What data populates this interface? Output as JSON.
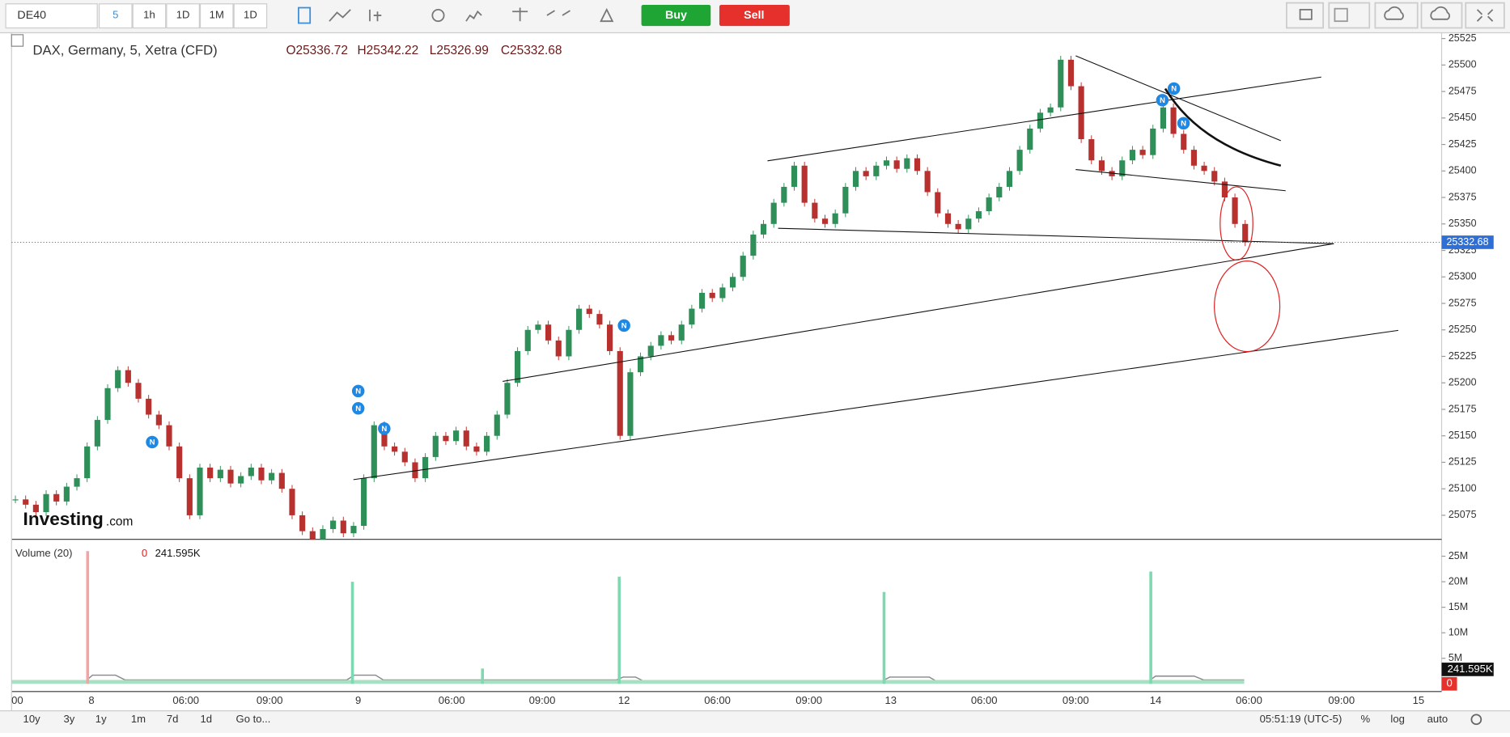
{
  "toolbar": {
    "symbol": "DE40",
    "intervals": [
      "5",
      "1h",
      "1D",
      "1M",
      "1D"
    ],
    "buy": "Buy",
    "sell": "Sell"
  },
  "price_chart": {
    "title": "DAX, Germany, 5, Xetra (CFD)",
    "ohlc": [
      "O25336.72",
      "H25342.22",
      "L25326.99",
      "C25332.68"
    ],
    "ylim": [
      25075,
      25525
    ],
    "yticks": [
      25075,
      25100,
      25125,
      25150,
      25175,
      25200,
      25225,
      25250,
      25275,
      25300,
      25325,
      25350,
      25375,
      25400,
      25425,
      25450,
      25475,
      25500,
      25525
    ],
    "current_price": 25332.68,
    "news_marker": "N",
    "up_color": "#2f8f58",
    "down_color": "#b8312f",
    "closes": [
      25090,
      25085,
      25078,
      25095,
      25088,
      25102,
      25110,
      25140,
      25165,
      25195,
      25212,
      25200,
      25185,
      25170,
      25160,
      25140,
      25110,
      25075,
      25120,
      25110,
      25118,
      25105,
      25112,
      25120,
      25108,
      25115,
      25100,
      25075,
      25060,
      25050,
      25062,
      25070,
      25058,
      25065,
      25110,
      25160,
      25140,
      25135,
      25125,
      25110,
      25130,
      25150,
      25145,
      25155,
      25140,
      25135,
      25150,
      25170,
      25200,
      25230,
      25250,
      25255,
      25240,
      25225,
      25250,
      25270,
      25265,
      25255,
      25230,
      25150,
      25210,
      25225,
      25235,
      25245,
      25240,
      25255,
      25270,
      25285,
      25280,
      25290,
      25300,
      25320,
      25340,
      25350,
      25370,
      25385,
      25405,
      25370,
      25355,
      25350,
      25360,
      25385,
      25400,
      25395,
      25405,
      25410,
      25402,
      25412,
      25400,
      25380,
      25360,
      25350,
      25345,
      25355,
      25362,
      25375,
      25385,
      25400,
      25420,
      25440,
      25455,
      25460,
      25505,
      25480,
      25430,
      25410,
      25400,
      25395,
      25410,
      25420,
      25415,
      25440,
      25460,
      25435,
      25420,
      25405,
      25400,
      25390,
      25375,
      25350,
      25332.68
    ]
  },
  "volume": {
    "title": "Volume (20)",
    "change": "0",
    "last": "241.595K",
    "ylim": [
      0,
      25
    ],
    "yticks": [
      {
        "value": 5,
        "label": "5M"
      },
      {
        "value": 10,
        "label": "10M"
      },
      {
        "value": 15,
        "label": "15M"
      },
      {
        "value": 20,
        "label": "20M"
      },
      {
        "value": 25,
        "label": "25M"
      }
    ],
    "spikes": [
      26,
      20,
      3,
      21,
      18,
      22
    ]
  },
  "time_labels": [
    "00",
    "8",
    "06:00",
    "09:00",
    "9",
    "06:00",
    "09:00",
    "12",
    "06:00",
    "09:00",
    "13",
    "06:00",
    "09:00",
    "14",
    "06:00",
    "09:00",
    "15"
  ],
  "logo": {
    "name": "Investing",
    "suffix": ".com"
  },
  "bottom_bar": {
    "ranges": [
      "10y",
      "3y",
      "1y",
      "1m",
      "7d",
      "1d"
    ],
    "goto": "Go to...",
    "clock": "05:51:19 (UTC-5)",
    "options": [
      "%",
      "log",
      "auto"
    ]
  }
}
